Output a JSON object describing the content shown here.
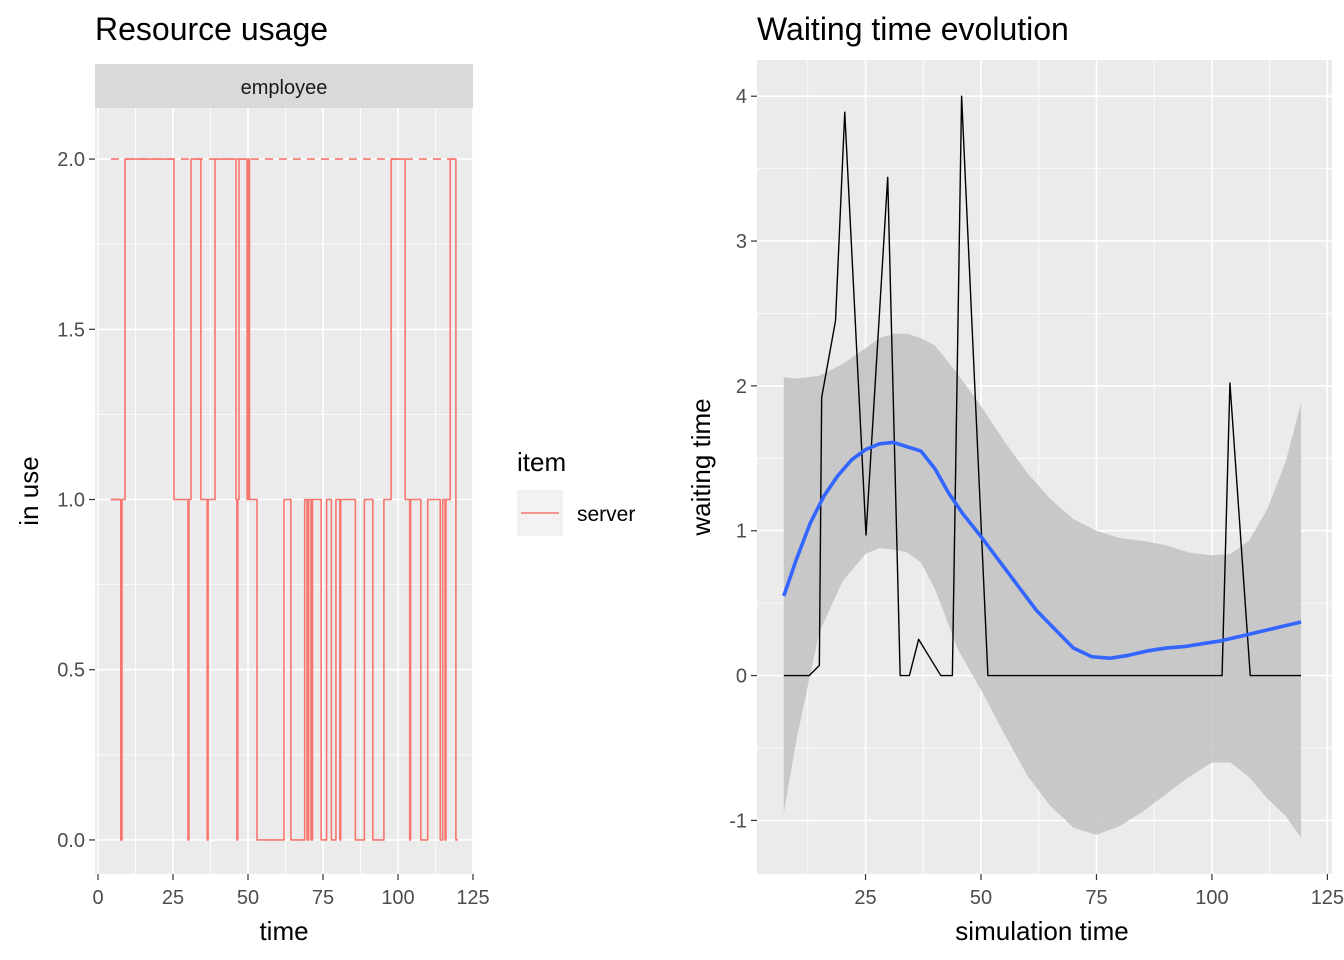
{
  "chart_data": [
    {
      "type": "line",
      "title": "Resource usage",
      "facet": "employee",
      "xlabel": "time",
      "ylabel": "in use",
      "xlim": [
        -1,
        125
      ],
      "ylim": [
        -0.1,
        2.15
      ],
      "x_ticks": [
        0,
        25,
        50,
        75,
        100,
        125
      ],
      "y_ticks": [
        0.0,
        0.5,
        1.0,
        1.5,
        2.0
      ],
      "x_tick_labels": [
        "0",
        "25",
        "50",
        "75",
        "100",
        "125"
      ],
      "y_tick_labels": [
        "0.0",
        "0.5",
        "1.0",
        "1.5",
        "2.0"
      ],
      "grid": true,
      "legend": {
        "title": "item",
        "position": "right",
        "entries": [
          {
            "label": "server",
            "color": "#f8766d"
          }
        ]
      },
      "series": [
        {
          "name": "server",
          "step": true,
          "color": "#f8766d",
          "points": [
            [
              4.3,
              1
            ],
            [
              7.6,
              0
            ],
            [
              8.0,
              1
            ],
            [
              9.0,
              2
            ],
            [
              25.3,
              1
            ],
            [
              30.0,
              0
            ],
            [
              30.3,
              1
            ],
            [
              31.0,
              2
            ],
            [
              34.3,
              1
            ],
            [
              36.4,
              0
            ],
            [
              36.7,
              1
            ],
            [
              39.0,
              2
            ],
            [
              46.0,
              1
            ],
            [
              46.3,
              0
            ],
            [
              46.6,
              1
            ],
            [
              47.0,
              2
            ],
            [
              49.7,
              1
            ],
            [
              50.2,
              2
            ],
            [
              50.5,
              1
            ],
            [
              53.0,
              0
            ],
            [
              62.0,
              1
            ],
            [
              64.3,
              0
            ],
            [
              68.9,
              1
            ],
            [
              69.7,
              0
            ],
            [
              70.2,
              1
            ],
            [
              71.0,
              0
            ],
            [
              71.5,
              1
            ],
            [
              74.4,
              0
            ],
            [
              76.2,
              1
            ],
            [
              77.8,
              0
            ],
            [
              79.3,
              1
            ],
            [
              80.6,
              0
            ],
            [
              80.9,
              1
            ],
            [
              85.8,
              0
            ],
            [
              88.8,
              1
            ],
            [
              91.6,
              0
            ],
            [
              95.3,
              1
            ],
            [
              97.7,
              2
            ],
            [
              102.4,
              1
            ],
            [
              103.9,
              0
            ],
            [
              104.2,
              1
            ],
            [
              107.6,
              0
            ],
            [
              109.9,
              1
            ],
            [
              114.1,
              0
            ],
            [
              114.9,
              1
            ],
            [
              115.7,
              0
            ],
            [
              116.0,
              1
            ],
            [
              117.4,
              2
            ],
            [
              119.3,
              0
            ],
            [
              120.0,
              0
            ]
          ]
        },
        {
          "name": "capacity",
          "step": true,
          "color": "#f8766d",
          "dashed": true,
          "points": [
            [
              4.3,
              2
            ],
            [
              120.0,
              2
            ]
          ]
        },
        {
          "name": "queue_size",
          "color": "#f8766d",
          "dashed": true,
          "points": [
            [
              4.3,
              1
            ],
            [
              8.0,
              1
            ]
          ]
        }
      ]
    },
    {
      "type": "line",
      "title": "Waiting time evolution",
      "xlabel": "simulation time",
      "ylabel": "waiting time",
      "xlim": [
        1.5,
        126
      ],
      "ylim": [
        -1.37,
        4.25
      ],
      "x_ticks": [
        25,
        50,
        75,
        100,
        125
      ],
      "y_ticks": [
        -1,
        0,
        1,
        2,
        3,
        4
      ],
      "x_tick_labels": [
        "25",
        "50",
        "75",
        "100",
        "125"
      ],
      "y_tick_labels": [
        "-1",
        "0",
        "1",
        "2",
        "3",
        "4"
      ],
      "grid": true,
      "series": [
        {
          "name": "waiting time",
          "color": "#000000",
          "points": [
            [
              7.3,
              0
            ],
            [
              12.8,
              0
            ],
            [
              15.0,
              0.07
            ],
            [
              15.5,
              1.92
            ],
            [
              18.5,
              2.45
            ],
            [
              20.5,
              3.89
            ],
            [
              25.1,
              0.97
            ],
            [
              29.8,
              3.44
            ],
            [
              32.5,
              0
            ],
            [
              34.5,
              0
            ],
            [
              36.5,
              0.25
            ],
            [
              41.3,
              0
            ],
            [
              43.8,
              0
            ],
            [
              45.8,
              4.0
            ],
            [
              51.5,
              0
            ],
            [
              102.2,
              0
            ],
            [
              103.9,
              2.02
            ],
            [
              108.3,
              0
            ],
            [
              119.3,
              0
            ]
          ]
        },
        {
          "name": "smooth",
          "color": "#3366ff",
          "points": [
            [
              7.3,
              0.55
            ],
            [
              10,
              0.8
            ],
            [
              13,
              1.05
            ],
            [
              16,
              1.24
            ],
            [
              19,
              1.38
            ],
            [
              22,
              1.49
            ],
            [
              25,
              1.56
            ],
            [
              28,
              1.6
            ],
            [
              31,
              1.61
            ],
            [
              34,
              1.58
            ],
            [
              37,
              1.55
            ],
            [
              40,
              1.43
            ],
            [
              43,
              1.26
            ],
            [
              46,
              1.12
            ],
            [
              50,
              0.96
            ],
            [
              54,
              0.79
            ],
            [
              58,
              0.62
            ],
            [
              62,
              0.45
            ],
            [
              66,
              0.32
            ],
            [
              70,
              0.19
            ],
            [
              74,
              0.13
            ],
            [
              78,
              0.12
            ],
            [
              82,
              0.14
            ],
            [
              86,
              0.17
            ],
            [
              90,
              0.19
            ],
            [
              94,
              0.2
            ],
            [
              98,
              0.22
            ],
            [
              102,
              0.24
            ],
            [
              106,
              0.27
            ],
            [
              110,
              0.3
            ],
            [
              114,
              0.33
            ],
            [
              119.3,
              0.37
            ]
          ]
        }
      ],
      "ribbon": {
        "color": "#c2c2c2",
        "x": [
          7.3,
          10,
          15,
          20,
          25,
          28,
          31,
          34,
          37,
          40,
          45,
          50,
          55,
          60,
          65,
          70,
          75,
          80,
          85,
          90,
          95,
          100,
          104,
          108,
          112,
          116,
          119.3
        ],
        "upper": [
          2.06,
          2.05,
          2.07,
          2.15,
          2.26,
          2.33,
          2.36,
          2.36,
          2.33,
          2.28,
          2.08,
          1.86,
          1.62,
          1.4,
          1.22,
          1.08,
          1.0,
          0.95,
          0.93,
          0.9,
          0.85,
          0.83,
          0.84,
          0.93,
          1.15,
          1.48,
          1.88
        ],
        "lower": [
          -0.95,
          -0.45,
          0.3,
          0.65,
          0.84,
          0.88,
          0.87,
          0.85,
          0.78,
          0.6,
          0.18,
          -0.1,
          -0.4,
          -0.69,
          -0.9,
          -1.05,
          -1.1,
          -1.04,
          -0.94,
          -0.82,
          -0.7,
          -0.6,
          -0.6,
          -0.7,
          -0.85,
          -0.97,
          -1.12
        ]
      }
    }
  ]
}
